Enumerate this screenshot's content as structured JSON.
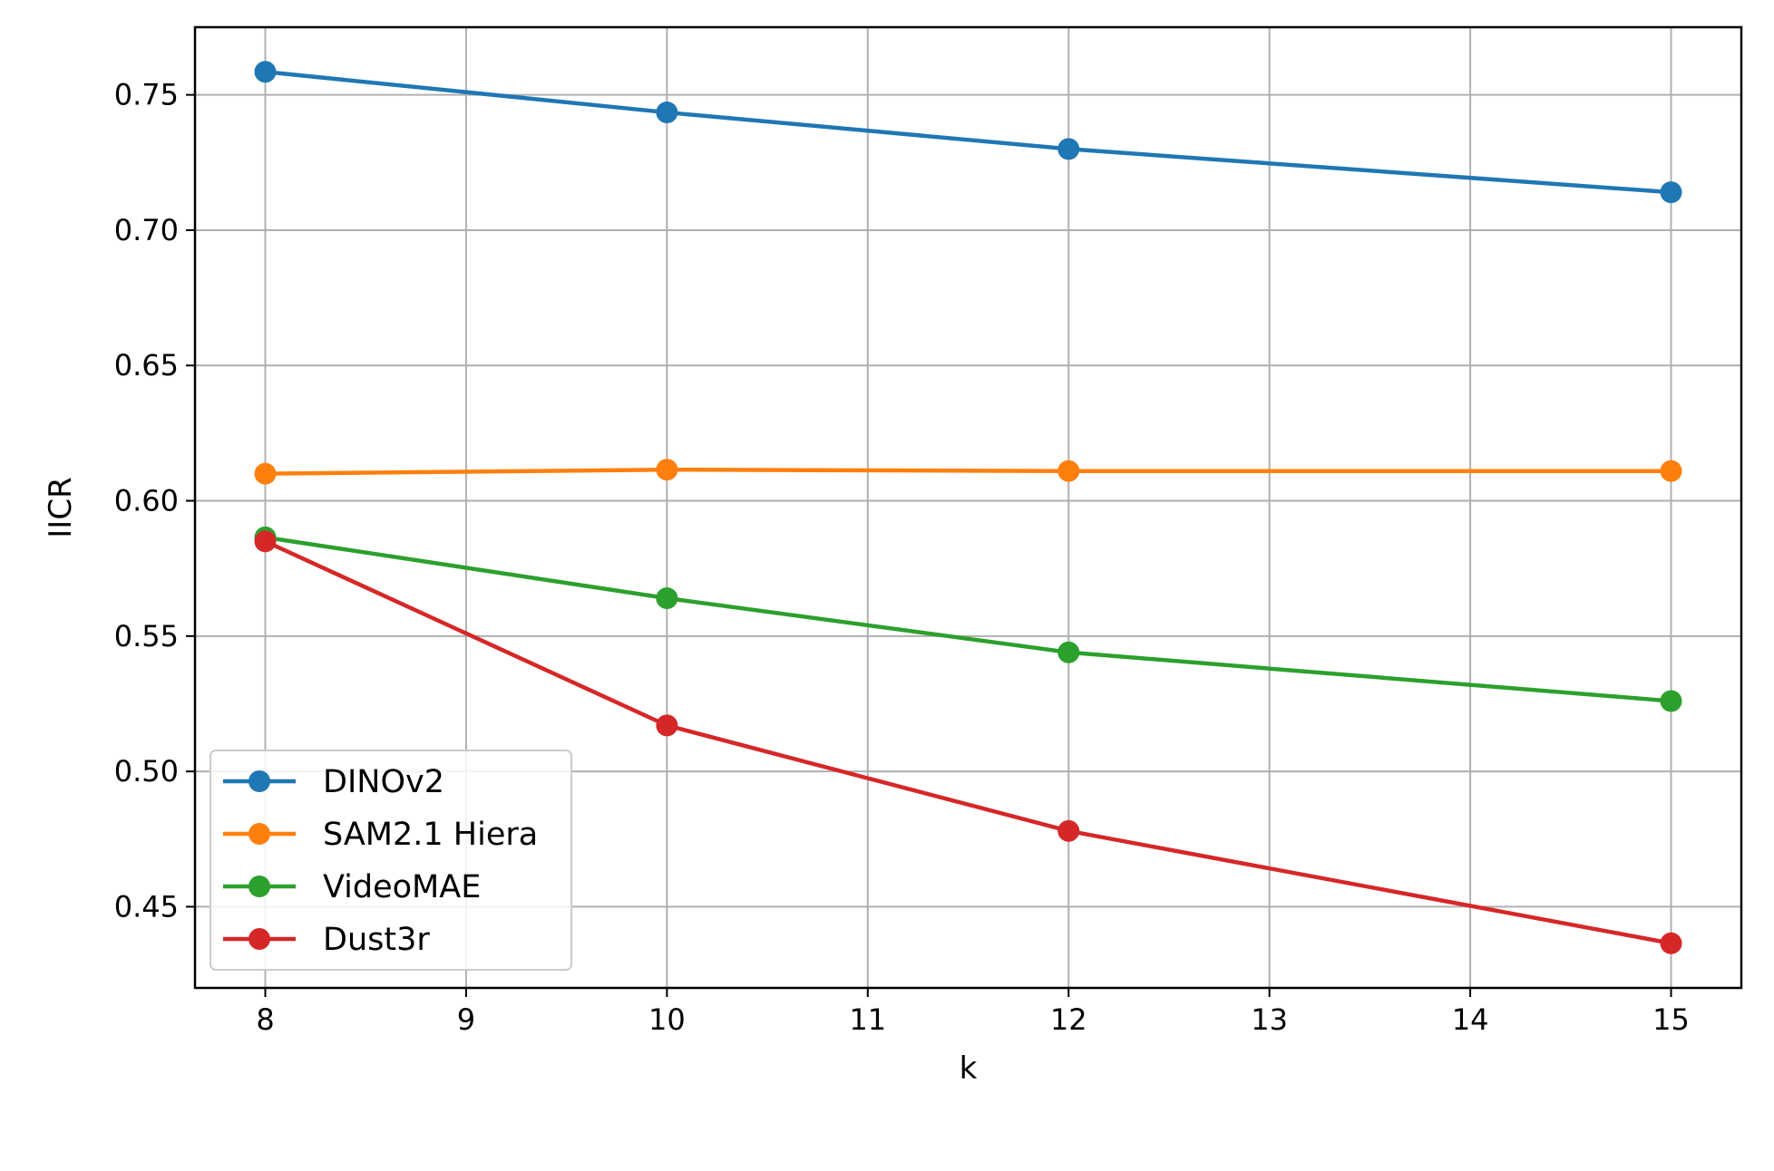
{
  "chart_data": {
    "type": "line",
    "title": "",
    "xlabel": "k",
    "ylabel": "IICR",
    "xlim": [
      7.65,
      15.35
    ],
    "ylim": [
      0.42,
      0.775
    ],
    "xticks": [
      8,
      9,
      10,
      11,
      12,
      13,
      14,
      15
    ],
    "yticks": [
      0.45,
      0.5,
      0.55,
      0.6,
      0.65,
      0.7,
      0.75
    ],
    "ytick_labels": [
      "0.45",
      "0.50",
      "0.55",
      "0.60",
      "0.65",
      "0.70",
      "0.75"
    ],
    "grid": true,
    "legend_position": "lower-left",
    "x": [
      8,
      10,
      12,
      15
    ],
    "series": [
      {
        "name": "DINOv2",
        "color": "#1f77b4",
        "values": [
          0.7585,
          0.7435,
          0.73,
          0.714
        ]
      },
      {
        "name": "SAM2.1 Hiera",
        "color": "#ff7f0e",
        "values": [
          0.61,
          0.6115,
          0.611,
          0.611
        ]
      },
      {
        "name": "VideoMAE",
        "color": "#2ca02c",
        "values": [
          0.5865,
          0.564,
          0.544,
          0.526
        ]
      },
      {
        "name": "Dust3r",
        "color": "#d62728",
        "values": [
          0.585,
          0.517,
          0.478,
          0.4365
        ]
      }
    ]
  }
}
